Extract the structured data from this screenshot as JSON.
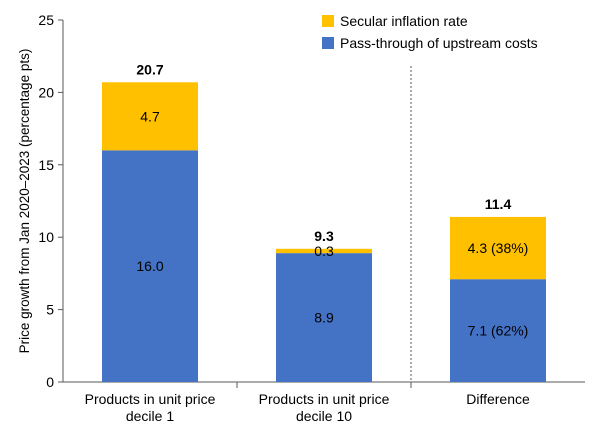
{
  "chart_data": {
    "type": "bar",
    "stacked": true,
    "ylabel": "Price growth from Jan 2020–2023 (percentage pts)",
    "ylim": [
      0,
      25
    ],
    "yticks": [
      0,
      5,
      10,
      15,
      20,
      25
    ],
    "grid": false,
    "legend_position": "top-right",
    "categories": [
      [
        "Products in unit price",
        "decile 1"
      ],
      [
        "Products in unit price",
        "decile 10"
      ],
      [
        "Difference"
      ]
    ],
    "series": [
      {
        "name": "Pass-through of upstream costs",
        "color": "#4472C4",
        "values": [
          16.0,
          8.9,
          7.1
        ],
        "labels": [
          "16.0",
          "8.9",
          "7.1 (62%)"
        ]
      },
      {
        "name": "Secular inflation rate",
        "color": "#FFC000",
        "values": [
          4.7,
          0.3,
          4.3
        ],
        "labels": [
          "4.7",
          "0.3",
          "4.3 (38%)"
        ]
      }
    ],
    "totals": [
      "20.7",
      "9.3",
      "11.4"
    ],
    "separator_before_category": 2
  }
}
